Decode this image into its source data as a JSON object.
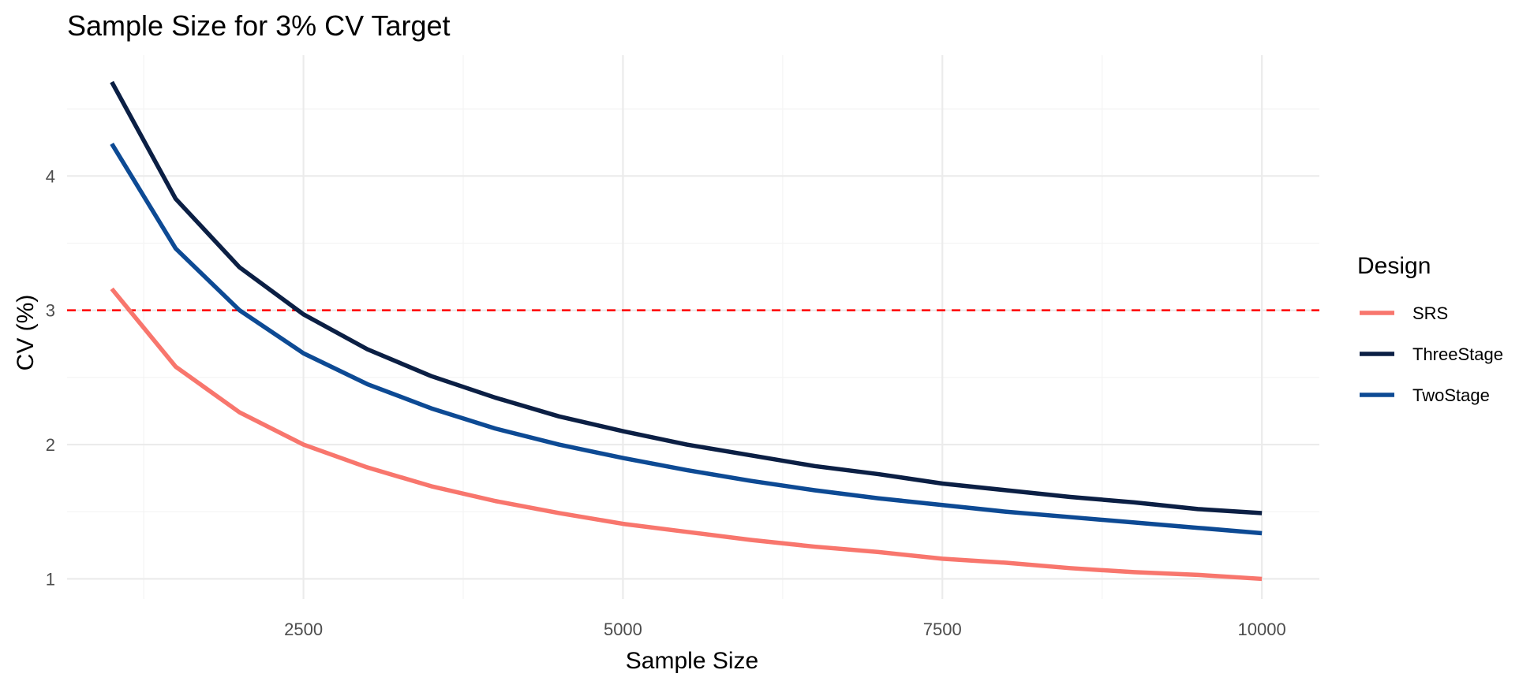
{
  "chart_data": {
    "type": "line",
    "title": "Sample Size for 3% CV Target",
    "xlabel": "Sample Size",
    "ylabel": "CV (%)",
    "xlim": [
      650,
      10450
    ],
    "ylim": [
      0.85,
      4.9
    ],
    "x_ticks": [
      2500,
      5000,
      7500,
      10000
    ],
    "y_ticks": [
      1,
      2,
      3,
      4
    ],
    "grid": true,
    "legend": {
      "title": "Design",
      "position": "right"
    },
    "reference_line": {
      "axis": "y",
      "value": 3,
      "style": "dashed",
      "color": "#ff0000"
    },
    "x": [
      1000,
      1500,
      2000,
      2500,
      3000,
      3500,
      4000,
      4500,
      5000,
      5500,
      6000,
      6500,
      7000,
      7500,
      8000,
      8500,
      9000,
      9500,
      10000
    ],
    "series": [
      {
        "name": "SRS",
        "color": "#f8766d",
        "values": [
          3.16,
          2.58,
          2.24,
          2.0,
          1.83,
          1.69,
          1.58,
          1.49,
          1.41,
          1.35,
          1.29,
          1.24,
          1.2,
          1.15,
          1.12,
          1.08,
          1.05,
          1.03,
          1.0
        ]
      },
      {
        "name": "ThreeStage",
        "color": "#0b1f44",
        "values": [
          4.7,
          3.83,
          3.32,
          2.97,
          2.71,
          2.51,
          2.35,
          2.21,
          2.1,
          2.0,
          1.92,
          1.84,
          1.78,
          1.71,
          1.66,
          1.61,
          1.57,
          1.52,
          1.49
        ]
      },
      {
        "name": "TwoStage",
        "color": "#0d4a94",
        "values": [
          4.24,
          3.46,
          3.0,
          2.68,
          2.45,
          2.27,
          2.12,
          2.0,
          1.9,
          1.81,
          1.73,
          1.66,
          1.6,
          1.55,
          1.5,
          1.46,
          1.42,
          1.38,
          1.34
        ]
      }
    ]
  }
}
